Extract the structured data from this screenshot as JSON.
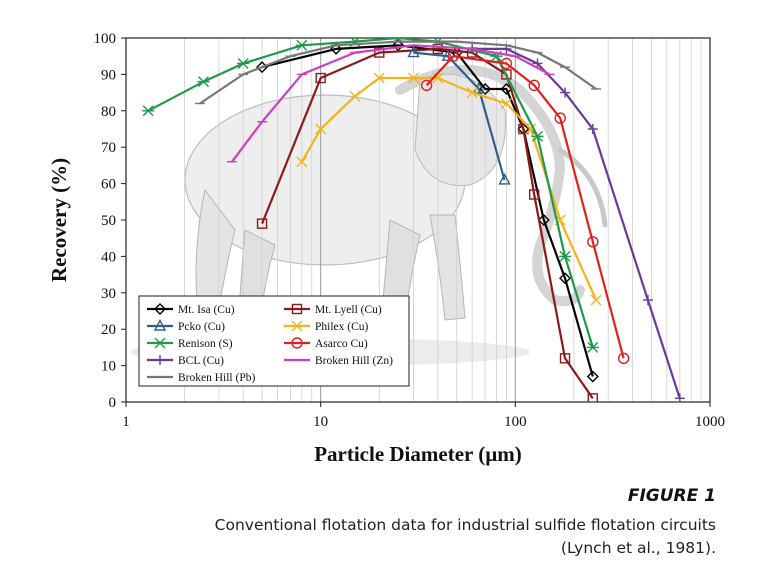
{
  "figure": {
    "label": "FIGURE 1",
    "caption_line1": "Conventional flotation data for industrial sulfide flotation circuits",
    "caption_line2": "(Lynch et al., 1981)."
  },
  "chart_data": {
    "type": "line",
    "xlabel": "Particle Diameter (µm)",
    "ylabel": "Recovery (%)",
    "xscale": "log",
    "xlim": [
      1,
      1000
    ],
    "ylim": [
      0,
      100
    ],
    "xticks": [
      1,
      10,
      100,
      1000
    ],
    "xtick_labels": [
      "1",
      "10",
      "100",
      "1000"
    ],
    "yticks": [
      0,
      10,
      20,
      30,
      40,
      50,
      60,
      70,
      80,
      90,
      100
    ],
    "grid": "vertical log gridlines",
    "legend_position": "bottom-left",
    "background": "pencil sketch of an elephant",
    "series": [
      {
        "name": "Mt. Isa (Cu)",
        "color": "#000000",
        "marker": "diamond",
        "x": [
          5,
          12,
          25,
          50,
          70,
          90,
          110,
          140,
          180,
          250
        ],
        "y": [
          92,
          97,
          98,
          96,
          86,
          86,
          75,
          50,
          34,
          7
        ]
      },
      {
        "name": "Mt. Lyell (Cu)",
        "color": "#8b1a1a",
        "marker": "square",
        "x": [
          5,
          10,
          20,
          40,
          60,
          90,
          110,
          125,
          180,
          250
        ],
        "y": [
          49,
          89,
          96,
          97,
          96,
          90,
          75,
          57,
          12,
          1
        ]
      },
      {
        "name": "Pcko (Cu)",
        "color": "#2e5f8c",
        "marker": "triangle",
        "x": [
          30,
          45,
          65,
          88
        ],
        "y": [
          96,
          95,
          86,
          61
        ]
      },
      {
        "name": "Philex (Cu)",
        "color": "#f2b418",
        "marker": "x",
        "x": [
          8,
          10,
          15,
          20,
          30,
          40,
          60,
          90,
          120,
          170,
          260
        ],
        "y": [
          66,
          75,
          84,
          89,
          89,
          89,
          85,
          82,
          75,
          50,
          28
        ]
      },
      {
        "name": "Renison (S)",
        "color": "#1f9a4c",
        "marker": "asterisk",
        "x": [
          1.3,
          2.5,
          4,
          8,
          15,
          25,
          40,
          80,
          130,
          180,
          250
        ],
        "y": [
          80,
          88,
          93,
          98,
          99,
          100,
          99,
          95,
          73,
          40,
          15
        ]
      },
      {
        "name": "Asarco Cu)",
        "color": "#e02020",
        "marker": "circle",
        "x": [
          35,
          48,
          90,
          125,
          170,
          250,
          360
        ],
        "y": [
          87,
          95,
          93,
          87,
          78,
          44,
          12
        ]
      },
      {
        "name": "BCL (Cu)",
        "color": "#6a3a99",
        "marker": "plus",
        "x": [
          60,
          90,
          130,
          180,
          250,
          480,
          700
        ],
        "y": [
          97,
          97,
          93,
          85,
          75,
          28,
          1
        ]
      },
      {
        "name": "Broken Hill (Zn)",
        "color": "#cc3fc0",
        "marker": "dash",
        "x": [
          3.5,
          5,
          8,
          15,
          30,
          60,
          100,
          150
        ],
        "y": [
          66,
          77,
          90,
          96,
          98,
          97,
          95,
          90
        ]
      },
      {
        "name": "Broken Hill (Pb)",
        "color": "#777777",
        "marker": "dash",
        "x": [
          2.4,
          4,
          7,
          12,
          25,
          50,
          90,
          130,
          180,
          260
        ],
        "y": [
          82,
          90,
          95,
          98,
          99,
          99,
          98,
          96,
          92,
          86
        ]
      }
    ]
  }
}
